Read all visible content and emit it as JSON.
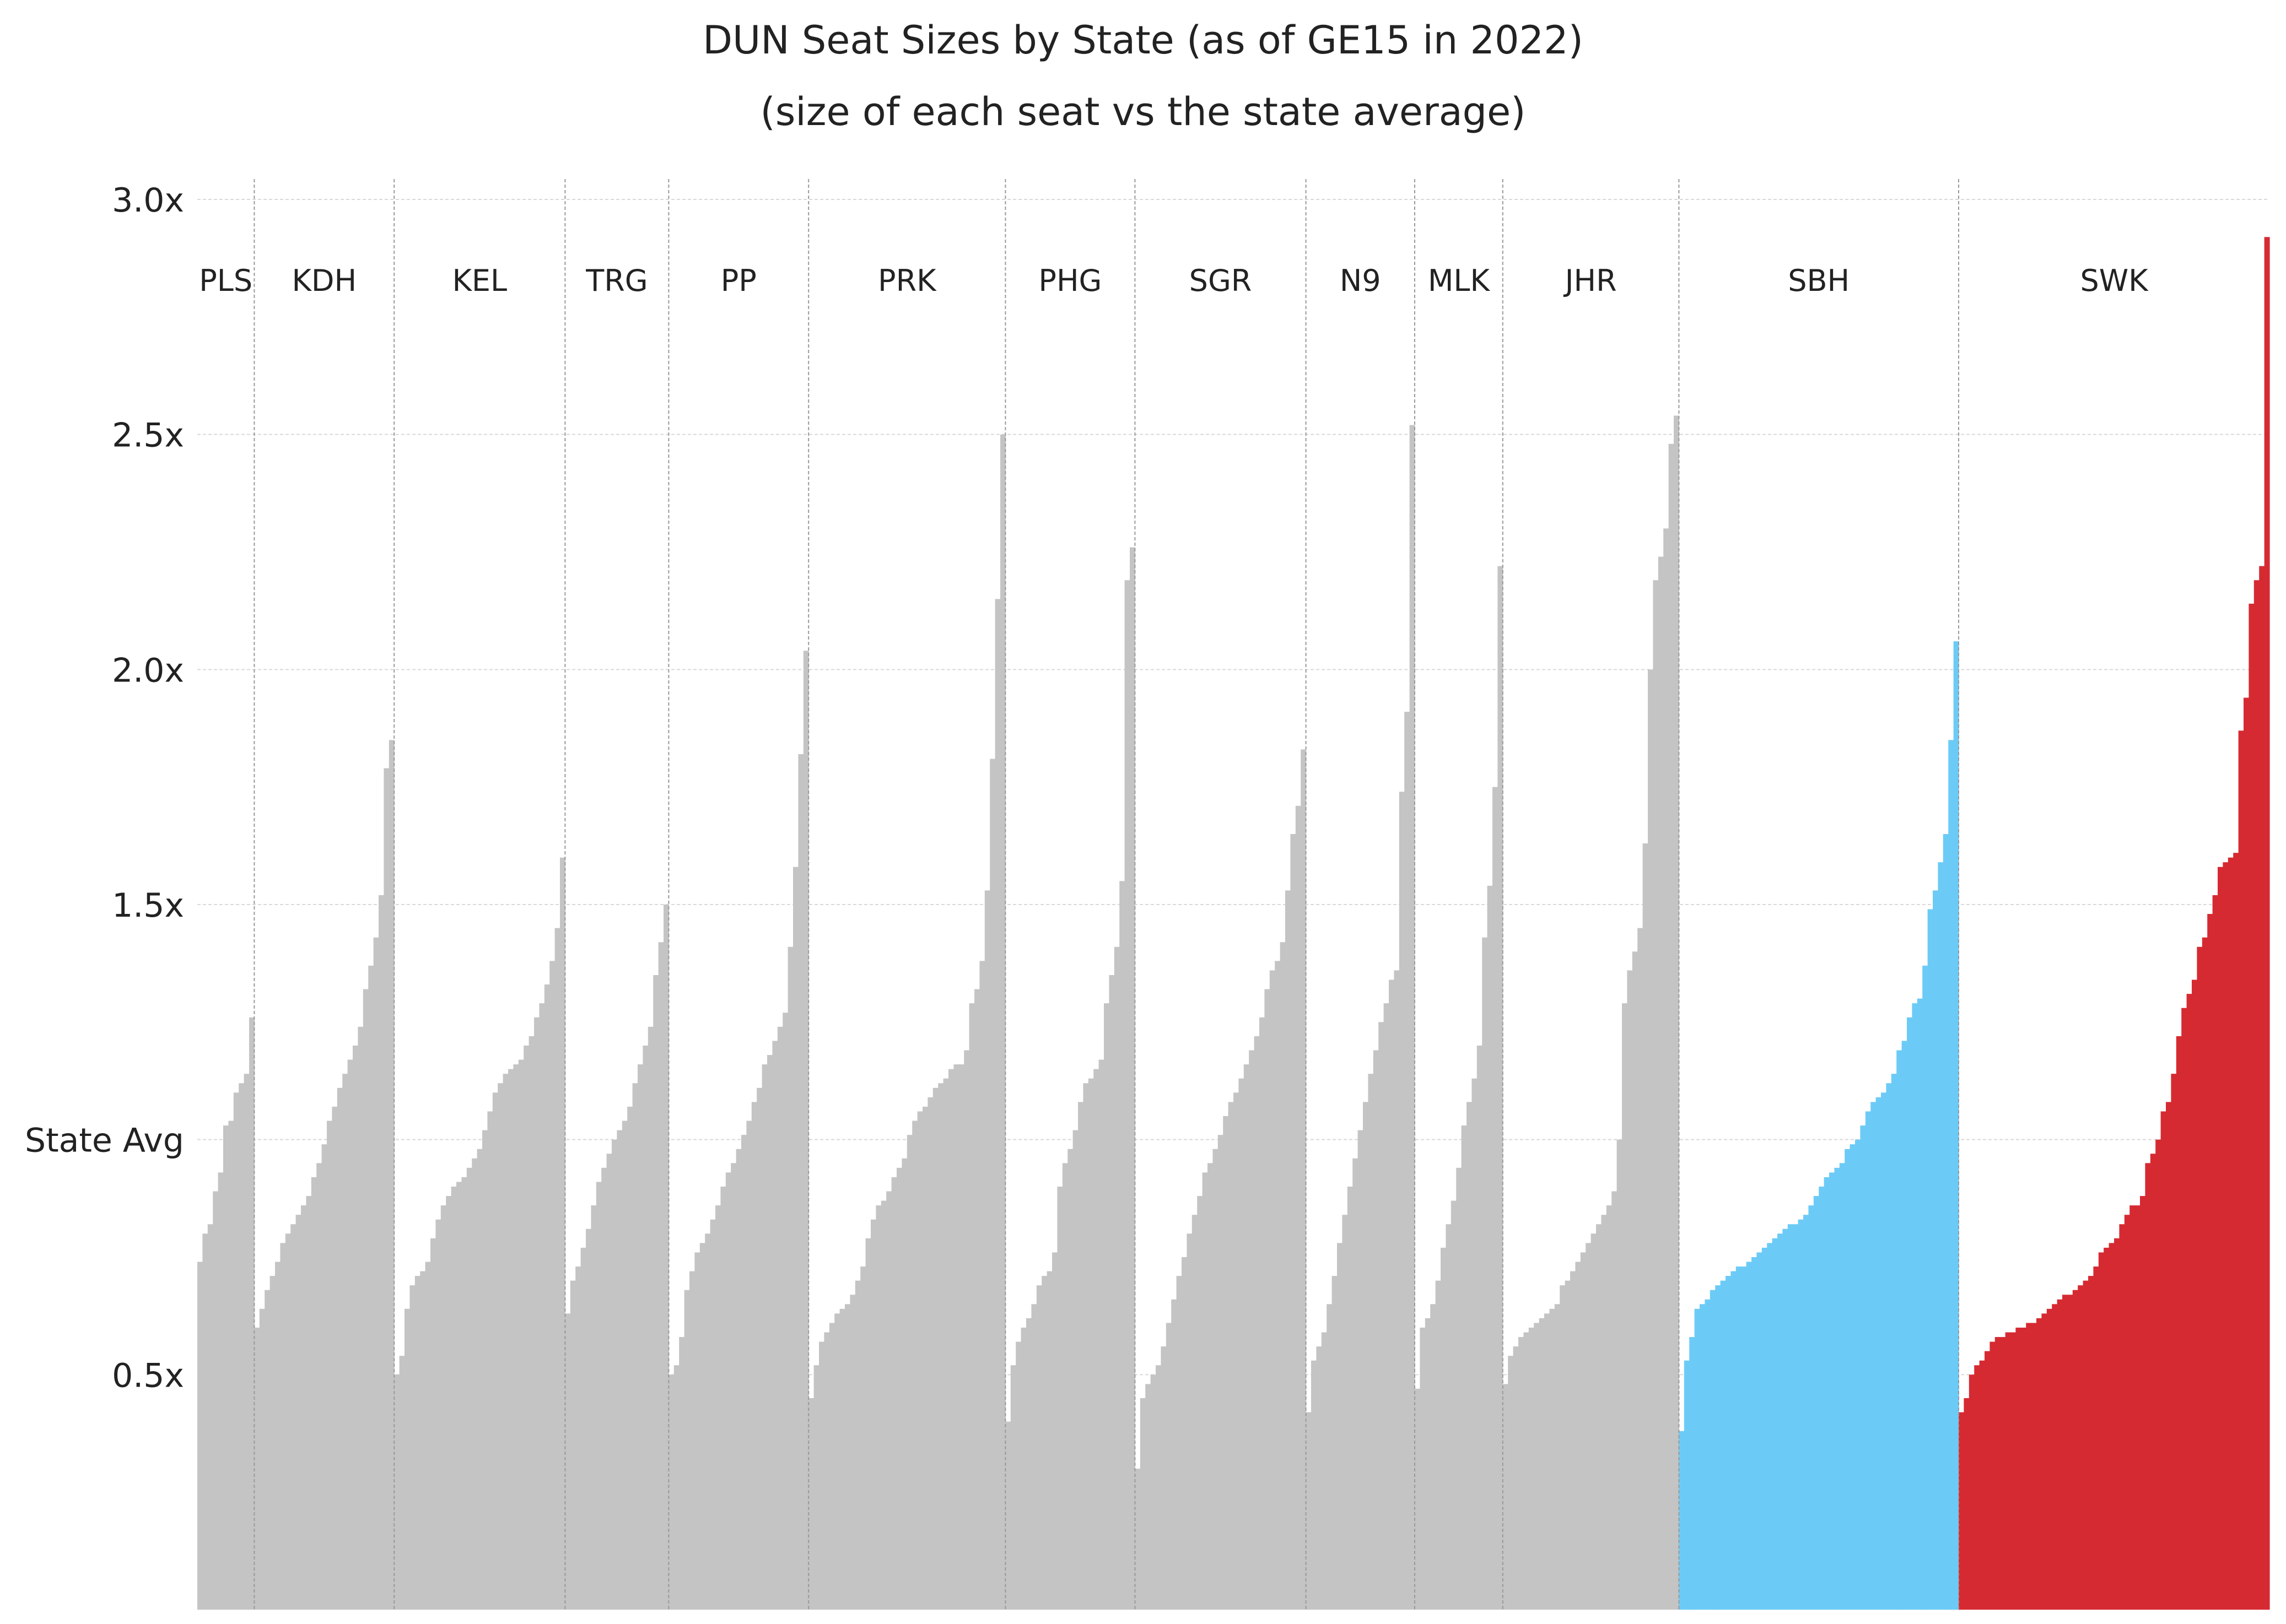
{
  "chart_data": {
    "type": "bar",
    "title": "DUN Seat Sizes by State (as of GE15 in 2022)",
    "subtitle": "(size of each seat vs the state average)",
    "xlabel": "",
    "ylabel": "",
    "ylim": [
      0,
      3.0
    ],
    "y_ticks": [
      {
        "value": 0.5,
        "label": "0.5x"
      },
      {
        "value": 1.0,
        "label": "State Avg"
      },
      {
        "value": 1.5,
        "label": "1.5x"
      },
      {
        "value": 2.0,
        "label": "2.0x"
      },
      {
        "value": 2.5,
        "label": "2.5x"
      },
      {
        "value": 3.0,
        "label": "3.0x"
      }
    ],
    "grid": true,
    "colors": {
      "default": "#c4c4c4",
      "SBH": "#6ccbf6",
      "SWK": "#d62a32",
      "grid": "#d9d9d9",
      "separator": "#9a9a9a"
    },
    "states": [
      {
        "name": "PLS",
        "values": [
          0.74,
          0.8,
          0.82,
          0.89,
          0.93,
          1.03,
          1.04,
          1.1,
          1.12,
          1.14,
          1.26
        ]
      },
      {
        "name": "KDH",
        "values": [
          0.6,
          0.64,
          0.68,
          0.71,
          0.74,
          0.78,
          0.8,
          0.82,
          0.84,
          0.86,
          0.88,
          0.92,
          0.95,
          0.99,
          1.04,
          1.07,
          1.11,
          1.14,
          1.17,
          1.2,
          1.24,
          1.32,
          1.37,
          1.43,
          1.52,
          1.79,
          1.85
        ]
      },
      {
        "name": "KEL",
        "values": [
          0.5,
          0.54,
          0.64,
          0.69,
          0.71,
          0.72,
          0.74,
          0.79,
          0.83,
          0.86,
          0.88,
          0.9,
          0.91,
          0.92,
          0.94,
          0.96,
          0.98,
          1.02,
          1.06,
          1.1,
          1.12,
          1.14,
          1.15,
          1.16,
          1.17,
          1.2,
          1.22,
          1.26,
          1.29,
          1.33,
          1.38,
          1.45,
          1.6
        ]
      },
      {
        "name": "TRG",
        "values": [
          0.63,
          0.7,
          0.73,
          0.77,
          0.81,
          0.86,
          0.91,
          0.94,
          0.97,
          1.0,
          1.02,
          1.04,
          1.07,
          1.12,
          1.16,
          1.2,
          1.24,
          1.35,
          1.42,
          1.5
        ]
      },
      {
        "name": "PP",
        "values": [
          0.5,
          0.52,
          0.58,
          0.68,
          0.72,
          0.76,
          0.78,
          0.8,
          0.83,
          0.86,
          0.9,
          0.93,
          0.95,
          0.98,
          1.01,
          1.04,
          1.08,
          1.11,
          1.16,
          1.18,
          1.21,
          1.24,
          1.27,
          1.41,
          1.58,
          1.82,
          2.04
        ]
      },
      {
        "name": "PRK",
        "values": [
          0.45,
          0.52,
          0.57,
          0.59,
          0.61,
          0.63,
          0.64,
          0.65,
          0.67,
          0.7,
          0.73,
          0.79,
          0.83,
          0.86,
          0.87,
          0.89,
          0.92,
          0.94,
          0.96,
          1.01,
          1.04,
          1.06,
          1.07,
          1.09,
          1.11,
          1.12,
          1.13,
          1.15,
          1.16,
          1.16,
          1.19,
          1.29,
          1.32,
          1.38,
          1.53,
          1.81,
          2.15,
          2.5
        ]
      },
      {
        "name": "PHG",
        "values": [
          0.4,
          0.52,
          0.57,
          0.6,
          0.62,
          0.65,
          0.69,
          0.71,
          0.72,
          0.76,
          0.9,
          0.95,
          0.98,
          1.02,
          1.08,
          1.12,
          1.13,
          1.15,
          1.17,
          1.29,
          1.35,
          1.41,
          1.55,
          2.19,
          2.26
        ]
      },
      {
        "name": "SGR",
        "values": [
          0.3,
          0.45,
          0.48,
          0.5,
          0.52,
          0.56,
          0.61,
          0.66,
          0.71,
          0.75,
          0.8,
          0.84,
          0.88,
          0.93,
          0.95,
          0.98,
          1.01,
          1.05,
          1.08,
          1.1,
          1.13,
          1.16,
          1.19,
          1.22,
          1.26,
          1.32,
          1.36,
          1.38,
          1.42,
          1.53,
          1.65,
          1.71,
          1.83
        ]
      },
      {
        "name": "N9",
        "values": [
          0.42,
          0.53,
          0.56,
          0.59,
          0.65,
          0.71,
          0.78,
          0.84,
          0.9,
          0.96,
          1.02,
          1.08,
          1.14,
          1.19,
          1.25,
          1.29,
          1.34,
          1.36,
          1.74,
          1.91,
          2.52
        ]
      },
      {
        "name": "MLK",
        "values": [
          0.47,
          0.6,
          0.62,
          0.65,
          0.7,
          0.77,
          0.82,
          0.87,
          0.94,
          1.03,
          1.08,
          1.13,
          1.2,
          1.43,
          1.54,
          1.75,
          2.22
        ]
      },
      {
        "name": "JHR",
        "values": [
          0.48,
          0.54,
          0.56,
          0.58,
          0.59,
          0.6,
          0.61,
          0.62,
          0.63,
          0.64,
          0.65,
          0.69,
          0.7,
          0.72,
          0.74,
          0.76,
          0.78,
          0.8,
          0.82,
          0.84,
          0.86,
          0.89,
          1.0,
          1.29,
          1.36,
          1.4,
          1.45,
          1.63,
          2.0,
          2.19,
          2.24,
          2.3,
          2.48,
          2.54
        ]
      },
      {
        "name": "SBH",
        "values": [
          0.38,
          0.53,
          0.58,
          0.64,
          0.65,
          0.66,
          0.68,
          0.69,
          0.7,
          0.71,
          0.72,
          0.73,
          0.73,
          0.74,
          0.75,
          0.76,
          0.77,
          0.78,
          0.79,
          0.8,
          0.81,
          0.82,
          0.82,
          0.83,
          0.84,
          0.86,
          0.88,
          0.9,
          0.92,
          0.93,
          0.94,
          0.95,
          0.98,
          0.99,
          1.0,
          1.03,
          1.06,
          1.08,
          1.09,
          1.1,
          1.12,
          1.14,
          1.19,
          1.21,
          1.26,
          1.29,
          1.3,
          1.37,
          1.49,
          1.53,
          1.59,
          1.65,
          1.85,
          2.06
        ]
      },
      {
        "name": "SWK",
        "values": [
          0.42,
          0.45,
          0.5,
          0.52,
          0.53,
          0.55,
          0.57,
          0.58,
          0.58,
          0.59,
          0.59,
          0.6,
          0.6,
          0.61,
          0.61,
          0.62,
          0.63,
          0.64,
          0.65,
          0.66,
          0.67,
          0.67,
          0.68,
          0.69,
          0.7,
          0.71,
          0.73,
          0.76,
          0.77,
          0.78,
          0.79,
          0.82,
          0.84,
          0.86,
          0.86,
          0.88,
          0.95,
          0.97,
          1.0,
          1.06,
          1.08,
          1.14,
          1.22,
          1.28,
          1.31,
          1.34,
          1.41,
          1.43,
          1.48,
          1.52,
          1.58,
          1.59,
          1.6,
          1.61,
          1.87,
          1.94,
          2.14,
          2.19,
          2.22,
          2.92
        ]
      }
    ]
  }
}
